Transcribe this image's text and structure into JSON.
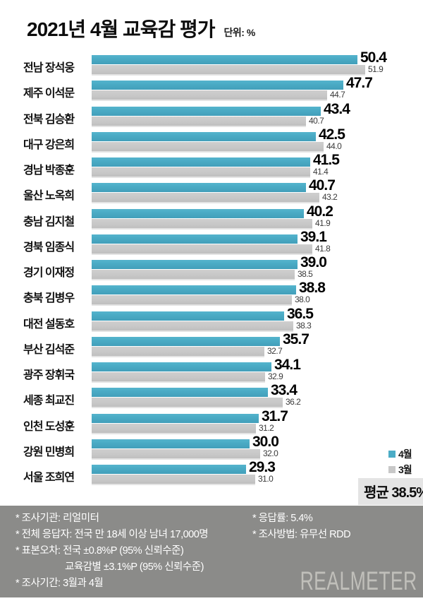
{
  "header": {
    "title": "2021년 4월 교육감 평가",
    "unit_label": "단위: %"
  },
  "chart_data": {
    "type": "bar",
    "orientation": "horizontal",
    "title": "2021년 4월 교육감 평가",
    "unit": "%",
    "xlim": [
      0,
      63
    ],
    "grid": false,
    "legend_position": "right-bottom",
    "categories": [
      "전남 장석웅",
      "제주 이석문",
      "전북 김승환",
      "대구 강은희",
      "경남 박종훈",
      "울산 노옥희",
      "충남 김지철",
      "경북 임종식",
      "경기 이재정",
      "충북 김병우",
      "대전 설동호",
      "부산 김석준",
      "광주 장휘국",
      "세종 최교진",
      "인천 도성훈",
      "강원 민병희",
      "서울 조희연"
    ],
    "series": [
      {
        "name": "4월",
        "color": "#4bacc6",
        "values": [
          50.4,
          47.7,
          43.4,
          42.5,
          41.5,
          40.7,
          40.2,
          39.1,
          39.0,
          38.8,
          36.5,
          35.7,
          34.1,
          33.4,
          31.7,
          30.0,
          29.3
        ]
      },
      {
        "name": "3월",
        "color": "#c8c8c8",
        "values": [
          51.9,
          44.7,
          40.7,
          44.0,
          41.4,
          43.2,
          41.9,
          41.8,
          38.5,
          38.0,
          38.3,
          32.7,
          32.9,
          36.2,
          31.2,
          32.0,
          31.0
        ]
      }
    ],
    "average_label": "평균 38.5%"
  },
  "footer": {
    "left_lines": [
      {
        "text": "* 조사기관: 리얼미터",
        "indent": false
      },
      {
        "text": "* 전체 응답자: 전국 만 18세 이상 남녀 17,000명",
        "indent": false
      },
      {
        "text": "* 표본오차: 전국 ±0.8%P (95% 신뢰수준)",
        "indent": false
      },
      {
        "text": "교육감별 ±3.1%P (95% 신뢰수준)",
        "indent": true
      },
      {
        "text": "* 조사기간: 3월과 4월",
        "indent": false
      }
    ],
    "right_lines": [
      {
        "text": "* 응답률: 5.4%",
        "indent": false
      },
      {
        "text": "* 조사방법: 유무선 RDD",
        "indent": false
      }
    ],
    "logo": "REALMETER",
    "background": "#8b8b89"
  }
}
